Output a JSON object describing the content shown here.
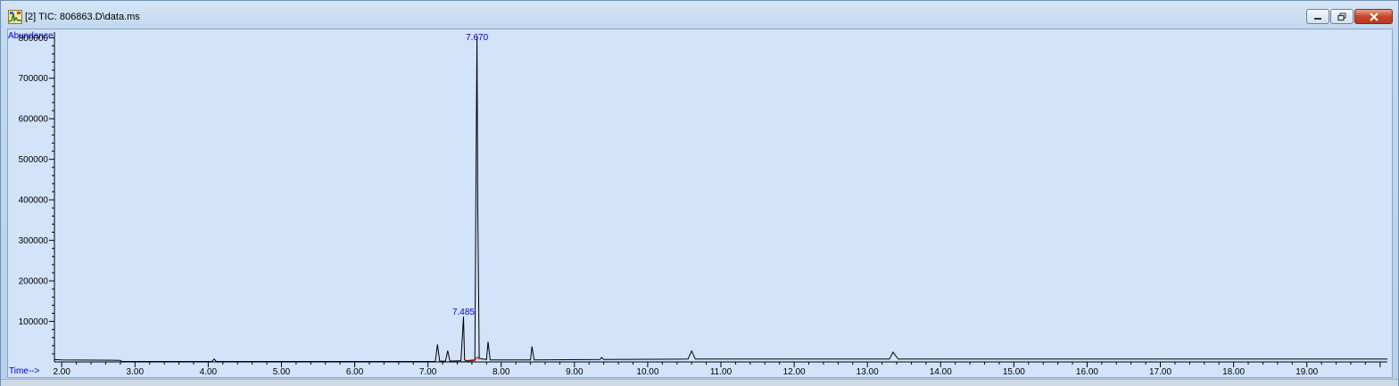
{
  "window": {
    "title": "[2] TIC: 806863.D\\data.ms",
    "icon": "chromatogram-app-icon",
    "controls": [
      "minimize",
      "restore",
      "close"
    ]
  },
  "plot": {
    "y_axis_label": "Abundance",
    "x_axis_label": "Time-->",
    "peak_labels": [
      "7.670",
      "7.485"
    ]
  },
  "chart_data": {
    "type": "line",
    "title": "",
    "xlabel": "Time-->",
    "ylabel": "Abundance",
    "xlim": [
      1.9,
      20.1
    ],
    "ylim": [
      0,
      805000
    ],
    "x_ticks": [
      "2.00",
      "3.00",
      "4.00",
      "5.00",
      "6.00",
      "7.00",
      "8.00",
      "9.00",
      "10.00",
      "11.00",
      "12.00",
      "13.00",
      "14.00",
      "15.00",
      "16.00",
      "17.00",
      "18.00",
      "19.00"
    ],
    "y_ticks": [
      "100000",
      "200000",
      "300000",
      "400000",
      "500000",
      "600000",
      "700000",
      "800000"
    ],
    "series": [
      {
        "color": "#000000",
        "x": [
          1.9,
          2.0,
          2.8,
          2.82,
          4.05,
          4.08,
          4.11,
          7.1,
          7.13,
          7.16,
          7.24,
          7.27,
          7.3,
          7.45,
          7.47,
          7.485,
          7.5,
          7.52,
          7.64,
          7.66,
          7.67,
          7.68,
          7.7,
          7.72,
          7.8,
          7.82,
          7.85,
          8.4,
          8.42,
          8.45,
          9.35,
          9.37,
          9.4,
          10.55,
          10.6,
          10.65,
          13.3,
          13.35,
          13.42,
          20.1
        ],
        "y": [
          6000,
          5000,
          4000,
          1000,
          1000,
          7000,
          1000,
          1000,
          43000,
          2000,
          2000,
          28000,
          2000,
          3000,
          60000,
          112000,
          5000,
          3000,
          5000,
          550000,
          805000,
          380000,
          10000,
          8000,
          6000,
          50000,
          5000,
          5000,
          38000,
          5000,
          6000,
          11000,
          6000,
          7000,
          27000,
          7000,
          7000,
          24000,
          7000,
          7000
        ]
      },
      {
        "color": "#d01a1a",
        "x": [
          7.45,
          7.5,
          7.52,
          7.64,
          7.66,
          7.68,
          7.7
        ],
        "y": [
          1000,
          1000,
          2000,
          3000,
          10000,
          12000,
          5000
        ]
      }
    ],
    "annotations": [
      {
        "x": 7.67,
        "y": 805000,
        "text": "7.670",
        "color": "#0000cc"
      },
      {
        "x": 7.485,
        "y": 112000,
        "text": "7.485",
        "color": "#0000cc"
      }
    ],
    "grid": false,
    "legend": "none"
  }
}
